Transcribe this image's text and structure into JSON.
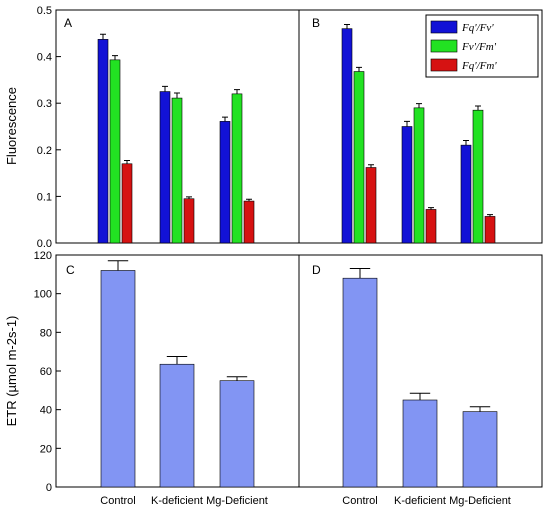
{
  "colors": {
    "fq_fv": "#1212d6",
    "fv_fm": "#22e222",
    "fq_fm": "#d61212",
    "etr": "#8295f3"
  },
  "chart_data": [
    {
      "panel": "A",
      "type": "bar",
      "categories": [
        "Control",
        "K-deficient",
        "Mg-Deficient"
      ],
      "ylabel": "Fluorescence",
      "ylim": [
        0,
        0.5
      ],
      "yticks": [
        "0.0",
        "0.1",
        "0.2",
        "0.3",
        "0.4",
        "0.5"
      ],
      "series": [
        {
          "name": "Fq'/Fv'",
          "values": [
            0.437,
            0.325,
            0.261
          ],
          "errors": [
            0.011,
            0.011,
            0.009
          ],
          "color_key": "fq_fv"
        },
        {
          "name": "Fv'/Fm'",
          "values": [
            0.393,
            0.311,
            0.32
          ],
          "errors": [
            0.009,
            0.011,
            0.009
          ],
          "color_key": "fv_fm"
        },
        {
          "name": "Fq'/Fm'",
          "values": [
            0.17,
            0.095,
            0.09
          ],
          "errors": [
            0.007,
            0.004,
            0.004
          ],
          "color_key": "fq_fm"
        }
      ]
    },
    {
      "panel": "B",
      "type": "bar",
      "categories": [
        "Control",
        "K-deficient",
        "Mg-Deficient"
      ],
      "ylim": [
        0,
        0.5
      ],
      "legend_position": "top-right",
      "series": [
        {
          "name": "Fq'/Fv'",
          "values": [
            0.46,
            0.25,
            0.21
          ],
          "errors": [
            0.009,
            0.011,
            0.01
          ],
          "color_key": "fq_fv"
        },
        {
          "name": "Fv'/Fm'",
          "values": [
            0.368,
            0.29,
            0.285
          ],
          "errors": [
            0.009,
            0.009,
            0.009
          ],
          "color_key": "fv_fm"
        },
        {
          "name": "Fq'/Fm'",
          "values": [
            0.162,
            0.072,
            0.057
          ],
          "errors": [
            0.006,
            0.004,
            0.004
          ],
          "color_key": "fq_fm"
        }
      ]
    },
    {
      "panel": "C",
      "type": "bar",
      "categories": [
        "Control",
        "K-deficient",
        "Mg-Deficient"
      ],
      "ylabel": "ETR (µmol m-2s-1)",
      "ylim": [
        0,
        120
      ],
      "yticks": [
        "0",
        "20",
        "40",
        "60",
        "80",
        "100",
        "120"
      ],
      "series": [
        {
          "values": [
            112,
            63.5,
            55
          ],
          "errors": [
            5,
            4,
            2
          ],
          "color_key": "etr"
        }
      ]
    },
    {
      "panel": "D",
      "type": "bar",
      "categories": [
        "Control",
        "K-deficient",
        "Mg-Deficient"
      ],
      "ylim": [
        0,
        120
      ],
      "series": [
        {
          "values": [
            108,
            45,
            39
          ],
          "errors": [
            5,
            3.5,
            2.5
          ],
          "color_key": "etr"
        }
      ]
    }
  ]
}
